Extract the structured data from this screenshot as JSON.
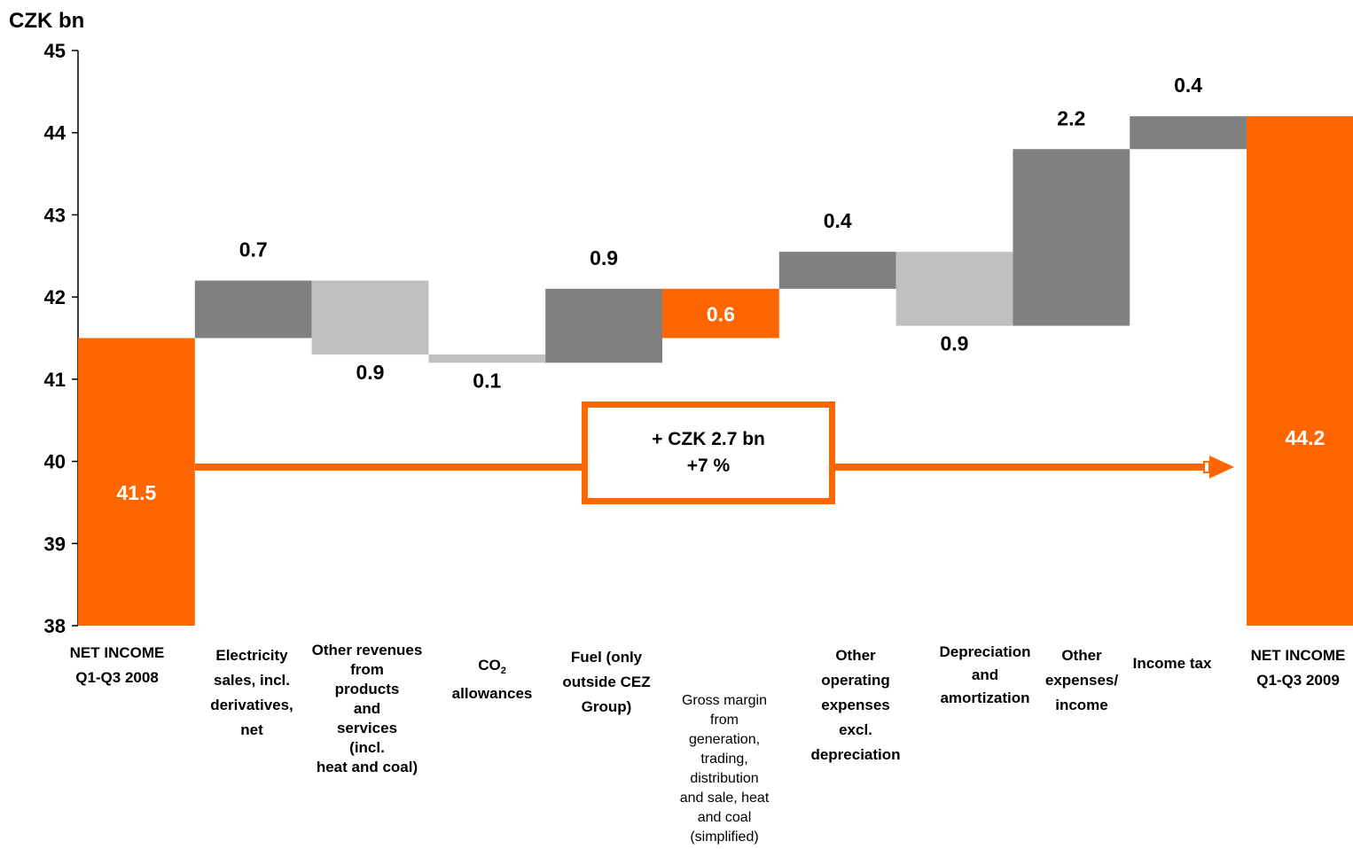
{
  "chart_data": {
    "type": "bar",
    "subtype": "waterfall",
    "ylabel": "CZK bn",
    "ylim": [
      38,
      45
    ],
    "yticks": [
      38,
      39,
      40,
      41,
      42,
      43,
      44,
      45
    ],
    "grid": false,
    "legend": "none",
    "categories": [
      "NET INCOME\nQ1-Q3 2008",
      "Electricity\nsales, incl.\nderivatives,\nnet",
      "Other revenues\nfrom\nproducts\nand\nservices\n(incl.\nheat and coal)",
      "CO2\nallowances",
      "Fuel (only\noutside CEZ\nGroup)",
      "Gross margin\nfrom\ngeneration,\ntrading,\ndistribution\nand sale, heat\nand coal\n(simplified)",
      "Other\noperating\nexpenses\nexcl.\ndepreciation",
      "Depreciation\nand\namortization",
      "Other\nexpenses/\nincome",
      "Income tax",
      "NET INCOME\nQ1-Q3 2009"
    ],
    "bars": [
      {
        "kind": "total",
        "start": 38,
        "end": 41.5,
        "label": "41.5",
        "color": "#ff6600"
      },
      {
        "kind": "increase",
        "start": 41.5,
        "end": 42.2,
        "label": "0.7",
        "color": "#808080"
      },
      {
        "kind": "decrease",
        "start": 42.2,
        "end": 41.3,
        "label": "0.9",
        "color": "#c0c0c0"
      },
      {
        "kind": "decrease",
        "start": 41.3,
        "end": 41.2,
        "label": "0.1",
        "color": "#c0c0c0"
      },
      {
        "kind": "increase",
        "start": 41.2,
        "end": 42.1,
        "label": "0.9",
        "color": "#808080"
      },
      {
        "kind": "subtotal",
        "start": 41.5,
        "end": 42.1,
        "label": "0.6",
        "color": "#ff6600"
      },
      {
        "kind": "increase",
        "start": 42.1,
        "end": 42.55,
        "label": "0.4",
        "color": "#808080"
      },
      {
        "kind": "decrease",
        "start": 42.55,
        "end": 41.65,
        "label": "0.9",
        "color": "#c0c0c0"
      },
      {
        "kind": "increase",
        "start": 41.65,
        "end": 43.8,
        "label": "2.2",
        "color": "#808080"
      },
      {
        "kind": "increase",
        "start": 43.8,
        "end": 44.2,
        "label": "0.4",
        "color": "#808080"
      },
      {
        "kind": "total",
        "start": 38,
        "end": 44.2,
        "label": "44.2",
        "color": "#ff6600"
      }
    ],
    "annotation": {
      "line1": "+ CZK 2.7 bn",
      "line2": "+7 %"
    }
  },
  "colors": {
    "accent": "#ff6600",
    "increase": "#808080",
    "decrease": "#c0c0c0"
  }
}
